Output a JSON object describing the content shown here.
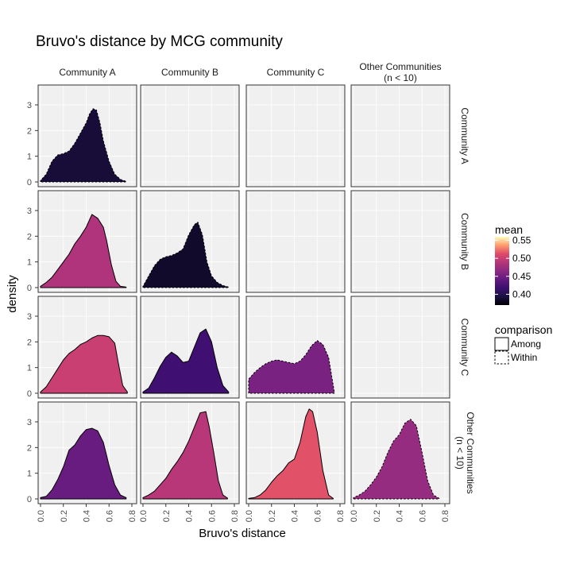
{
  "chart_data": {
    "type": "area",
    "chart_kind": "faceted density plot",
    "title": "Bruvo's distance by MCG community",
    "xlabel": "Bruvo's distance",
    "ylabel": "density",
    "column_facets": [
      "Community A",
      "Community B",
      "Community C",
      "Other Communities\n(n < 10)"
    ],
    "row_facets": [
      "Community A",
      "Community B",
      "Community C",
      "Other Communities\n(n < 10)"
    ],
    "xlim": [
      0,
      0.8
    ],
    "ylim": [
      0,
      3.5
    ],
    "x_ticks": [
      0.0,
      0.2,
      0.4,
      0.6,
      0.8
    ],
    "x_tick_labels": [
      "0.0",
      "0.2",
      "0.4",
      "0.6",
      "0.8"
    ],
    "y_ticks": [
      0,
      1,
      2,
      3
    ],
    "y_tick_labels": [
      "0",
      "1",
      "2",
      "3"
    ],
    "grid": true,
    "legend": {
      "position": "right",
      "mean": {
        "title": "mean",
        "breaks": [
          0.4,
          0.45,
          0.5,
          0.55
        ],
        "labels": [
          "0.40",
          "0.45",
          "0.50",
          "0.55"
        ],
        "range": [
          0.37,
          0.56
        ],
        "palette": "magma"
      },
      "comparison": {
        "title": "comparison",
        "entries": [
          {
            "label": "Among",
            "linetype": "solid"
          },
          {
            "label": "Within",
            "linetype": "dashed"
          }
        ]
      }
    },
    "panels": [
      {
        "row": 0,
        "col": 0,
        "comparison": "Within",
        "mean": 0.39,
        "x": [
          0.0,
          0.05,
          0.1,
          0.15,
          0.2,
          0.25,
          0.3,
          0.35,
          0.4,
          0.43,
          0.46,
          0.49,
          0.52,
          0.55,
          0.6,
          0.65,
          0.7,
          0.75
        ],
        "y": [
          0.05,
          0.3,
          0.8,
          1.05,
          1.1,
          1.2,
          1.5,
          1.9,
          2.3,
          2.65,
          2.85,
          2.8,
          2.3,
          1.6,
          0.8,
          0.3,
          0.1,
          0.02
        ]
      },
      {
        "row": 1,
        "col": 0,
        "comparison": "Among",
        "mean": 0.485,
        "x": [
          0.0,
          0.05,
          0.1,
          0.15,
          0.2,
          0.25,
          0.3,
          0.35,
          0.4,
          0.45,
          0.5,
          0.55,
          0.58,
          0.62,
          0.66,
          0.7,
          0.75
        ],
        "y": [
          0.05,
          0.2,
          0.4,
          0.7,
          1.0,
          1.3,
          1.7,
          2.0,
          2.35,
          2.85,
          2.7,
          2.35,
          1.8,
          0.9,
          0.25,
          0.05,
          0.02
        ]
      },
      {
        "row": 1,
        "col": 1,
        "comparison": "Within",
        "mean": 0.385,
        "x": [
          0.0,
          0.05,
          0.1,
          0.15,
          0.2,
          0.25,
          0.3,
          0.35,
          0.4,
          0.45,
          0.48,
          0.52,
          0.56,
          0.6,
          0.65,
          0.7,
          0.75
        ],
        "y": [
          0.05,
          0.45,
          0.85,
          1.1,
          1.2,
          1.25,
          1.35,
          1.5,
          2.05,
          2.45,
          2.55,
          2.05,
          1.0,
          0.45,
          0.2,
          0.08,
          0.02
        ]
      },
      {
        "row": 2,
        "col": 0,
        "comparison": "Among",
        "mean": 0.5,
        "x": [
          0.0,
          0.05,
          0.1,
          0.15,
          0.2,
          0.25,
          0.3,
          0.35,
          0.4,
          0.45,
          0.5,
          0.55,
          0.6,
          0.65,
          0.68,
          0.72,
          0.76
        ],
        "y": [
          0.05,
          0.25,
          0.6,
          0.95,
          1.3,
          1.55,
          1.7,
          1.9,
          2.0,
          2.15,
          2.25,
          2.25,
          2.2,
          1.95,
          1.2,
          0.3,
          0.05
        ]
      },
      {
        "row": 2,
        "col": 1,
        "comparison": "Among",
        "mean": 0.42,
        "x": [
          0.0,
          0.05,
          0.1,
          0.15,
          0.2,
          0.25,
          0.3,
          0.35,
          0.4,
          0.45,
          0.5,
          0.55,
          0.6,
          0.65,
          0.7,
          0.75
        ],
        "y": [
          0.05,
          0.2,
          0.6,
          1.05,
          1.4,
          1.6,
          1.45,
          1.2,
          1.25,
          1.8,
          2.35,
          2.5,
          2.0,
          1.0,
          0.3,
          0.05
        ]
      },
      {
        "row": 2,
        "col": 2,
        "comparison": "Within",
        "mean": 0.455,
        "x": [
          0.0,
          0.05,
          0.1,
          0.15,
          0.2,
          0.25,
          0.3,
          0.35,
          0.4,
          0.45,
          0.5,
          0.55,
          0.6,
          0.65,
          0.7,
          0.75
        ],
        "y": [
          0.55,
          0.8,
          1.0,
          1.15,
          1.25,
          1.3,
          1.25,
          1.2,
          1.15,
          1.25,
          1.5,
          1.85,
          2.05,
          1.9,
          1.4,
          0.05
        ]
      },
      {
        "row": 3,
        "col": 0,
        "comparison": "Among",
        "mean": 0.445,
        "x": [
          0.0,
          0.05,
          0.1,
          0.15,
          0.2,
          0.25,
          0.3,
          0.35,
          0.4,
          0.45,
          0.5,
          0.55,
          0.6,
          0.65,
          0.7,
          0.75
        ],
        "y": [
          0.05,
          0.1,
          0.35,
          0.75,
          1.25,
          1.9,
          2.1,
          2.45,
          2.7,
          2.75,
          2.65,
          2.2,
          1.3,
          0.55,
          0.15,
          0.05
        ]
      },
      {
        "row": 3,
        "col": 1,
        "comparison": "Among",
        "mean": 0.49,
        "x": [
          0.0,
          0.05,
          0.1,
          0.15,
          0.2,
          0.25,
          0.3,
          0.35,
          0.4,
          0.45,
          0.5,
          0.55,
          0.58,
          0.62,
          0.66,
          0.7,
          0.74
        ],
        "y": [
          0.05,
          0.15,
          0.3,
          0.55,
          0.8,
          1.15,
          1.45,
          1.8,
          2.25,
          2.8,
          3.35,
          3.4,
          2.8,
          1.8,
          0.7,
          0.15,
          0.03
        ]
      },
      {
        "row": 3,
        "col": 2,
        "comparison": "Among",
        "mean": 0.515,
        "x": [
          0.0,
          0.05,
          0.1,
          0.15,
          0.2,
          0.25,
          0.3,
          0.35,
          0.4,
          0.45,
          0.5,
          0.53,
          0.56,
          0.6,
          0.65,
          0.7,
          0.74
        ],
        "y": [
          0.02,
          0.05,
          0.15,
          0.35,
          0.65,
          0.9,
          1.1,
          1.4,
          1.55,
          2.2,
          3.2,
          3.5,
          3.4,
          2.6,
          1.1,
          0.15,
          0.02
        ]
      },
      {
        "row": 3,
        "col": 3,
        "comparison": "Within",
        "mean": 0.47,
        "x": [
          0.0,
          0.05,
          0.1,
          0.15,
          0.2,
          0.25,
          0.3,
          0.35,
          0.4,
          0.45,
          0.5,
          0.55,
          0.6,
          0.65,
          0.7,
          0.75
        ],
        "y": [
          0.05,
          0.15,
          0.3,
          0.55,
          0.85,
          1.25,
          1.8,
          2.25,
          2.5,
          2.95,
          3.1,
          2.85,
          1.8,
          0.7,
          0.15,
          0.02
        ]
      }
    ]
  }
}
